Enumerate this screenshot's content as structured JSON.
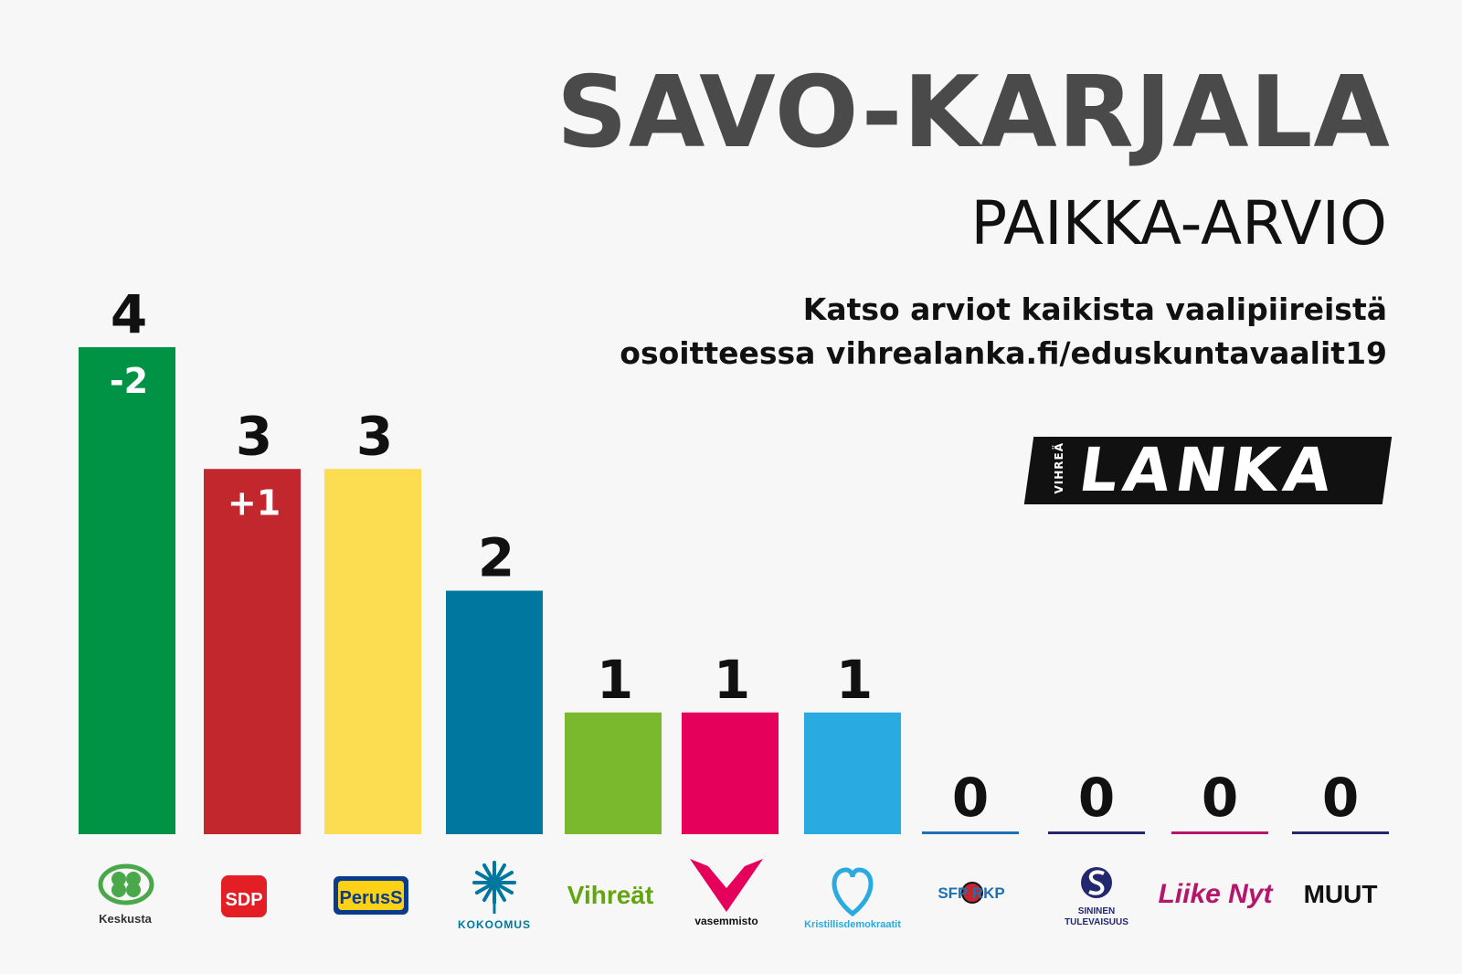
{
  "header": {
    "title": "SAVO-KARJALA",
    "subtitle": "PAIKKA-ARVIO",
    "note_line1": "Katso arviot kaikista vaalipiireistä",
    "note_line2": "osoitteessa vihrealanka.fi/eduskuntavaalit19",
    "brand_logo_text": "LANKA",
    "brand_logo_small": "VIHREÄ"
  },
  "chart_data": {
    "type": "bar",
    "categories": [
      "Keskusta",
      "SDP",
      "PerusS",
      "KOKOOMUS",
      "Vihreät",
      "vasemmisto",
      "Kristillisdemokraatit",
      "SFP RKP",
      "SININEN TULEVAISUUS",
      "Liike Nyt",
      "MUUT"
    ],
    "values": [
      4,
      3,
      3,
      2,
      1,
      1,
      1,
      0,
      0,
      0,
      0
    ],
    "changes": [
      "-2",
      "+1",
      "",
      "",
      "",
      "",
      "",
      "",
      "",
      "",
      ""
    ],
    "colors": [
      "#009245",
      "#c1272d",
      "#fcdc50",
      "#00779e",
      "#7ab82e",
      "#e5005c",
      "#29abe2",
      "#1f6fb5",
      "#23286e",
      "#b5166b",
      "#23286e"
    ],
    "ylim": [
      0,
      4
    ]
  }
}
